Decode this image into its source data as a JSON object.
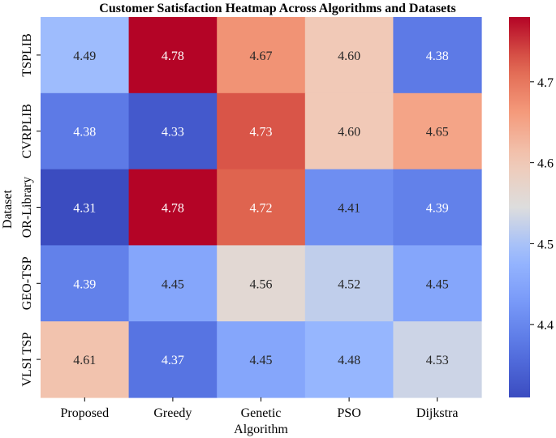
{
  "chart_data": {
    "type": "heatmap",
    "title": "Customer Satisfaction Heatmap Across Algorithms and Datasets",
    "xlabel": "",
    "ylabel": "Dataset",
    "x_categories": [
      [
        "Proposed"
      ],
      [
        "Greedy"
      ],
      [
        "Genetic",
        "Algorithm"
      ],
      [
        "PSO"
      ],
      [
        "Dijkstra"
      ]
    ],
    "y_categories": [
      "TSPLIB",
      "CVRPLIB",
      "OR-Library",
      "GEO-TSP",
      "VLSI TSP"
    ],
    "values": [
      [
        4.49,
        4.78,
        4.67,
        4.6,
        4.38
      ],
      [
        4.38,
        4.33,
        4.73,
        4.6,
        4.65
      ],
      [
        4.31,
        4.78,
        4.72,
        4.41,
        4.39
      ],
      [
        4.39,
        4.45,
        4.56,
        4.52,
        4.45
      ],
      [
        4.61,
        4.37,
        4.45,
        4.48,
        4.53
      ]
    ],
    "value_format": "2 decimals",
    "colormap": "coolwarm",
    "vmin": 4.31,
    "vmax": 4.78,
    "colorbar_ticks": [
      4.4,
      4.5,
      4.6,
      4.7
    ],
    "colorbar_tick_labels": [
      "4.4",
      "4.5",
      "4.6",
      "4.7"
    ],
    "grid": false,
    "legend": "colorbar-right"
  }
}
